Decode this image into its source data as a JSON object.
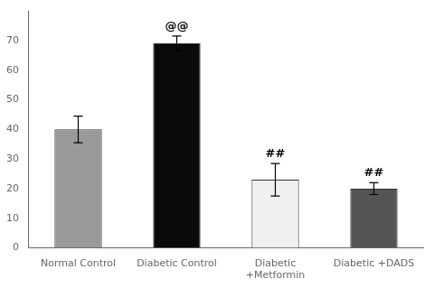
{
  "chart_data": {
    "type": "bar",
    "categories": [
      "Normal Control",
      "Diabetic Control",
      "Diabetic\n+Metformin",
      "Diabetic +DADS"
    ],
    "values": [
      40,
      69,
      23,
      20
    ],
    "errors": [
      4.5,
      2.5,
      5.5,
      2.0
    ],
    "colors": [
      "#999999",
      "#0a0a0a",
      "#f0f0f0",
      "#555555"
    ],
    "annotations": [
      null,
      "@@",
      "##",
      "##"
    ],
    "ylim": [
      0,
      80
    ],
    "yticks": [
      0,
      10,
      20,
      30,
      40,
      50,
      60,
      70
    ],
    "grid": false
  }
}
